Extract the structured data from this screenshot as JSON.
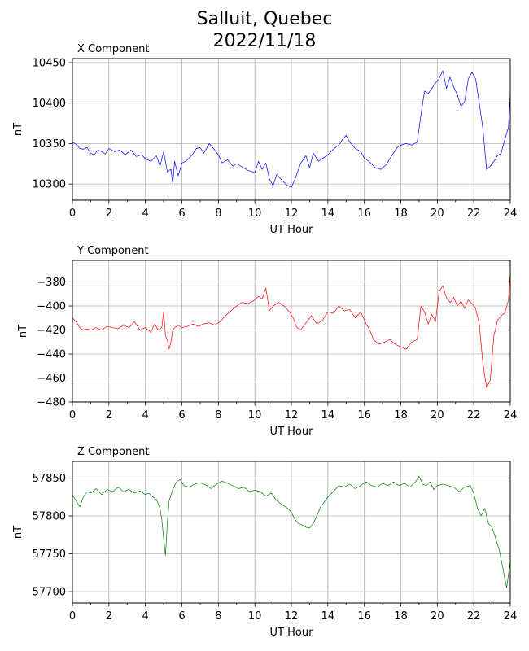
{
  "figure": {
    "title_line1": "Salluit, Quebec",
    "title_line2": "2022/11/18"
  },
  "chart_data": [
    {
      "type": "line",
      "title": "X Component",
      "xlabel": "UT Hour",
      "ylabel": "nT",
      "xlim": [
        0,
        24
      ],
      "ylim": [
        10280,
        10455
      ],
      "xticks": [
        0,
        2,
        4,
        6,
        8,
        10,
        12,
        14,
        16,
        18,
        20,
        22,
        24
      ],
      "yticks": [
        10300,
        10350,
        10400,
        10450
      ],
      "grid": true,
      "color": "#0000ff",
      "series": [
        {
          "x": [
            0,
            0.2,
            0.4,
            0.6,
            0.8,
            1,
            1.2,
            1.4,
            1.6,
            1.8,
            2,
            2.3,
            2.6,
            2.9,
            3.2,
            3.5,
            3.8,
            4.0,
            4.3,
            4.6,
            4.8,
            5.0,
            5.2,
            5.4,
            5.5,
            5.6,
            5.8,
            6.0,
            6.2,
            6.4,
            6.6,
            6.8,
            7.0,
            7.2,
            7.5,
            7.8,
            8.0,
            8.2,
            8.5,
            8.8,
            9.0,
            9.3,
            9.6,
            10.0,
            10.2,
            10.4,
            10.6,
            10.8,
            11.0,
            11.2,
            11.5,
            11.8,
            12.0,
            12.2,
            12.5,
            12.8,
            13.0,
            13.2,
            13.5,
            13.8,
            14.0,
            14.3,
            14.6,
            14.8,
            15.0,
            15.2,
            15.5,
            15.8,
            16.0,
            16.3,
            16.6,
            16.9,
            17.2,
            17.5,
            17.8,
            18.0,
            18.3,
            18.6,
            18.9,
            19.1,
            19.3,
            19.5,
            19.7,
            19.9,
            20.1,
            20.3,
            20.5,
            20.7,
            20.9,
            21.1,
            21.3,
            21.5,
            21.7,
            21.9,
            22.1,
            22.3,
            22.5,
            22.7,
            22.9,
            23.1,
            23.3,
            23.5,
            23.7,
            23.9,
            24.0
          ],
          "y": [
            10352,
            10349,
            10344,
            10343,
            10345,
            10338,
            10336,
            10342,
            10340,
            10337,
            10344,
            10340,
            10342,
            10336,
            10342,
            10334,
            10336,
            10331,
            10328,
            10335,
            10322,
            10340,
            10315,
            10318,
            10300,
            10328,
            10310,
            10326,
            10328,
            10332,
            10337,
            10344,
            10345,
            10338,
            10350,
            10342,
            10336,
            10326,
            10330,
            10322,
            10325,
            10321,
            10317,
            10314,
            10328,
            10318,
            10326,
            10306,
            10298,
            10312,
            10304,
            10298,
            10296,
            10306,
            10325,
            10335,
            10320,
            10338,
            10328,
            10333,
            10336,
            10343,
            10348,
            10355,
            10360,
            10352,
            10344,
            10340,
            10332,
            10327,
            10320,
            10318,
            10324,
            10335,
            10345,
            10348,
            10350,
            10348,
            10352,
            10385,
            10415,
            10412,
            10418,
            10425,
            10430,
            10440,
            10418,
            10432,
            10420,
            10410,
            10396,
            10402,
            10430,
            10438,
            10430,
            10400,
            10368,
            10318,
            10322,
            10328,
            10335,
            10338,
            10355,
            10370,
            10412
          ]
        }
      ]
    },
    {
      "type": "line",
      "title": "Y Component",
      "xlabel": "UT Hour",
      "ylabel": "nT",
      "xlim": [
        0,
        24
      ],
      "ylim": [
        -480,
        -362
      ],
      "xticks": [
        0,
        2,
        4,
        6,
        8,
        10,
        12,
        14,
        16,
        18,
        20,
        22,
        24
      ],
      "yticks": [
        -480,
        -460,
        -440,
        -420,
        -400,
        -380
      ],
      "grid": true,
      "color": "#ff0000",
      "series": [
        {
          "x": [
            0,
            0.2,
            0.4,
            0.6,
            0.8,
            1,
            1.3,
            1.6,
            1.9,
            2.2,
            2.5,
            2.8,
            3.1,
            3.4,
            3.7,
            4.0,
            4.3,
            4.5,
            4.7,
            4.9,
            5.0,
            5.1,
            5.2,
            5.3,
            5.4,
            5.5,
            5.6,
            5.8,
            6.0,
            6.3,
            6.6,
            6.9,
            7.2,
            7.5,
            7.8,
            8.1,
            8.4,
            8.7,
            9.0,
            9.3,
            9.6,
            9.9,
            10.2,
            10.4,
            10.6,
            10.8,
            11.0,
            11.3,
            11.6,
            11.9,
            12.1,
            12.3,
            12.5,
            12.8,
            13.1,
            13.4,
            13.7,
            14.0,
            14.3,
            14.6,
            14.9,
            15.2,
            15.5,
            15.8,
            16.1,
            16.3,
            16.5,
            16.8,
            17.1,
            17.4,
            17.7,
            18.0,
            18.3,
            18.6,
            18.9,
            19.1,
            19.3,
            19.5,
            19.7,
            19.9,
            20.1,
            20.3,
            20.5,
            20.7,
            20.9,
            21.1,
            21.3,
            21.5,
            21.7,
            21.9,
            22.1,
            22.3,
            22.5,
            22.7,
            22.9,
            23.1,
            23.3,
            23.5,
            23.7,
            23.9,
            24.0
          ],
          "y": [
            -410,
            -413,
            -418,
            -420,
            -419,
            -420,
            -418,
            -420,
            -417,
            -418,
            -419,
            -416,
            -418,
            -413,
            -420,
            -418,
            -422,
            -415,
            -420,
            -418,
            -405,
            -425,
            -428,
            -436,
            -430,
            -420,
            -418,
            -416,
            -418,
            -417,
            -415,
            -417,
            -415,
            -414,
            -416,
            -413,
            -408,
            -404,
            -400,
            -397,
            -398,
            -396,
            -392,
            -394,
            -385,
            -404,
            -400,
            -397,
            -400,
            -405,
            -410,
            -418,
            -420,
            -414,
            -408,
            -415,
            -412,
            -405,
            -406,
            -400,
            -404,
            -403,
            -410,
            -405,
            -415,
            -420,
            -428,
            -432,
            -430,
            -428,
            -432,
            -434,
            -436,
            -430,
            -428,
            -400,
            -405,
            -415,
            -407,
            -413,
            -388,
            -383,
            -393,
            -397,
            -393,
            -400,
            -396,
            -402,
            -395,
            -398,
            -402,
            -415,
            -448,
            -468,
            -462,
            -425,
            -412,
            -408,
            -406,
            -395,
            -372
          ]
        }
      ]
    },
    {
      "type": "line",
      "title": "Z Component",
      "xlabel": "UT Hour",
      "ylabel": "nT",
      "xlim": [
        0,
        24
      ],
      "ylim": [
        57685,
        57872
      ],
      "xticks": [
        0,
        2,
        4,
        6,
        8,
        10,
        12,
        14,
        16,
        18,
        20,
        22,
        24
      ],
      "yticks": [
        57700,
        57750,
        57800,
        57850
      ],
      "grid": true,
      "color": "#008000",
      "series": [
        {
          "x": [
            0,
            0.2,
            0.4,
            0.6,
            0.8,
            1,
            1.3,
            1.6,
            1.9,
            2.2,
            2.5,
            2.8,
            3.1,
            3.4,
            3.7,
            4.0,
            4.2,
            4.4,
            4.6,
            4.8,
            4.9,
            5.0,
            5.1,
            5.2,
            5.3,
            5.5,
            5.7,
            5.9,
            6.1,
            6.4,
            6.7,
            7.0,
            7.3,
            7.6,
            7.9,
            8.2,
            8.5,
            8.8,
            9.1,
            9.4,
            9.7,
            10.0,
            10.3,
            10.6,
            10.9,
            11.2,
            11.5,
            11.8,
            12.0,
            12.2,
            12.4,
            12.6,
            12.8,
            13.0,
            13.2,
            13.4,
            13.6,
            13.8,
            14.0,
            14.3,
            14.6,
            14.9,
            15.2,
            15.5,
            15.8,
            16.1,
            16.4,
            16.7,
            17.0,
            17.3,
            17.6,
            17.9,
            18.2,
            18.5,
            18.8,
            19.0,
            19.2,
            19.4,
            19.6,
            19.8,
            20.0,
            20.3,
            20.6,
            20.9,
            21.2,
            21.5,
            21.8,
            22.0,
            22.2,
            22.4,
            22.6,
            22.8,
            23.0,
            23.2,
            23.4,
            23.6,
            23.8,
            24.0
          ],
          "y": [
            57828,
            57820,
            57812,
            57825,
            57832,
            57830,
            57836,
            57828,
            57835,
            57832,
            57838,
            57832,
            57835,
            57830,
            57833,
            57828,
            57830,
            57825,
            57822,
            57810,
            57795,
            57770,
            57748,
            57790,
            57820,
            57835,
            57845,
            57848,
            57840,
            57838,
            57842,
            57844,
            57841,
            57836,
            57842,
            57846,
            57843,
            57840,
            57836,
            57838,
            57832,
            57834,
            57832,
            57826,
            57830,
            57820,
            57815,
            57810,
            57805,
            57795,
            57790,
            57788,
            57785,
            57784,
            57790,
            57800,
            57812,
            57818,
            57825,
            57832,
            57840,
            57838,
            57842,
            57836,
            57840,
            57845,
            57840,
            57838,
            57843,
            57840,
            57845,
            57840,
            57843,
            57838,
            57845,
            57852,
            57842,
            57840,
            57845,
            57835,
            57840,
            57842,
            57840,
            57838,
            57832,
            57838,
            57840,
            57830,
            57810,
            57800,
            57810,
            57790,
            57785,
            57770,
            57755,
            57730,
            57705,
            57740
          ]
        }
      ]
    }
  ]
}
